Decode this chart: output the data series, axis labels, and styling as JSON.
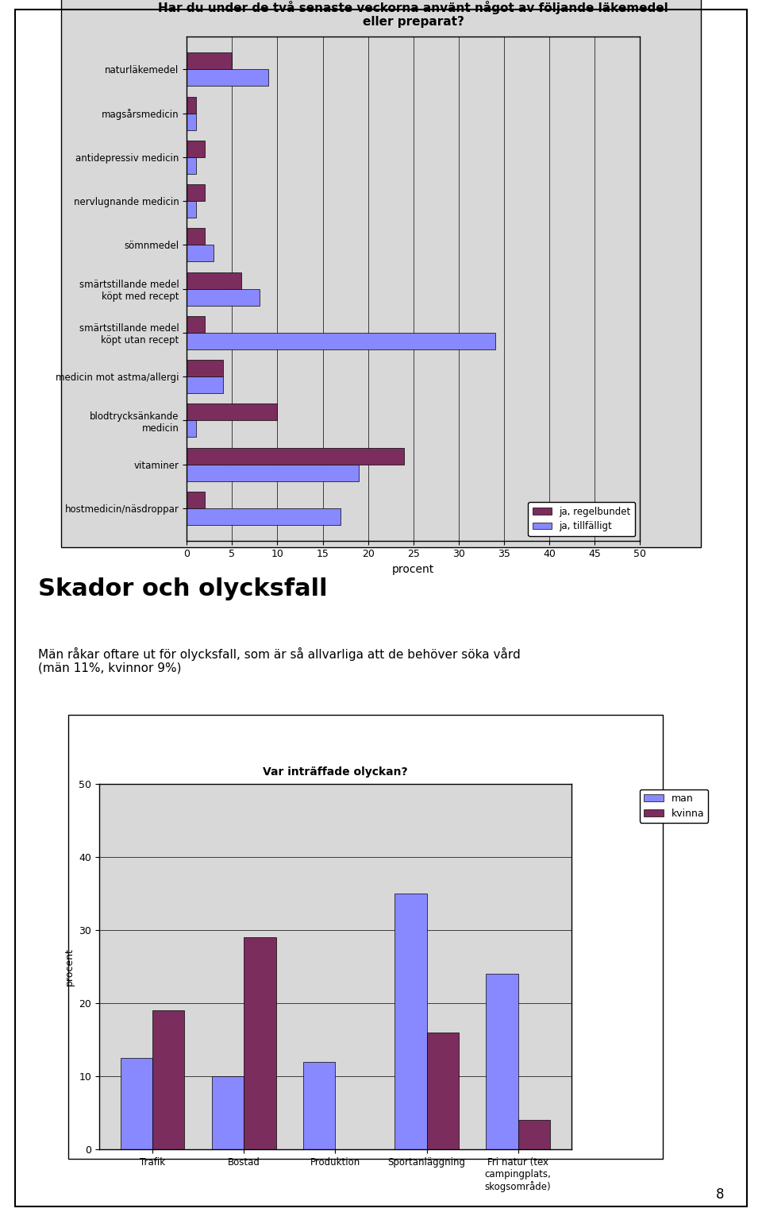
{
  "chart1": {
    "title": "Har du under de två senaste veckorna använt något av följande läkemedel\neller preparat?",
    "categories": [
      "naturläkemedel",
      "magsårsmedicin",
      "antidepressiv medicin",
      "nervlugnande medicin",
      "sömnmedel",
      "smärtstillande medel\nköpt med recept",
      "smärtstillande medel\nköpt utan recept",
      "medicin mot astma/allergi",
      "blodtrycksänkande\nmedicin",
      "vitaminer",
      "hostmedicin/näsdroppar"
    ],
    "regelbundet": [
      5,
      1,
      2,
      2,
      2,
      6,
      2,
      4,
      10,
      24,
      2
    ],
    "tillfalligt": [
      9,
      1,
      1,
      1,
      3,
      8,
      34,
      4,
      1,
      19,
      17
    ],
    "xlabel": "procent",
    "xlim": [
      0,
      50
    ],
    "xticks": [
      0,
      5,
      10,
      15,
      20,
      25,
      30,
      35,
      40,
      45,
      50
    ],
    "color_regelbundet": "#7B2D5E",
    "color_tillfalligt": "#8888FF",
    "legend_regelbundet": "ja, regelbundet",
    "legend_tillfalligt": "ja, tillfälligt",
    "bg_color": "#D8D8D8"
  },
  "chart2": {
    "title": "Var inträffade olyckan?",
    "categories": [
      "Trafik",
      "Bostad",
      "Produktion",
      "Sportanläggning",
      "Fri natur (tex\ncampingplats,\nskogsområde)"
    ],
    "man": [
      12.5,
      10,
      12,
      35,
      24
    ],
    "kvinna": [
      19,
      29,
      0,
      16,
      4
    ],
    "color_man": "#8888FF",
    "color_kvinna": "#7B2D5E",
    "ylabel": "procent",
    "ylim": [
      0,
      50
    ],
    "yticks": [
      0,
      10,
      20,
      30,
      40,
      50
    ],
    "legend_man": "man",
    "legend_kvinna": "kvinna",
    "bg_color": "#D8D8D8"
  },
  "section_title": "Skador och olycksfall",
  "section_text": "Män råkar oftare ut för olycksfall, som är så allvarliga att de behöver söka vård\n(män 11%, kvinnor 9%)",
  "page_number": "8",
  "bg_page": "#FFFFFF",
  "border_color": "#000000"
}
